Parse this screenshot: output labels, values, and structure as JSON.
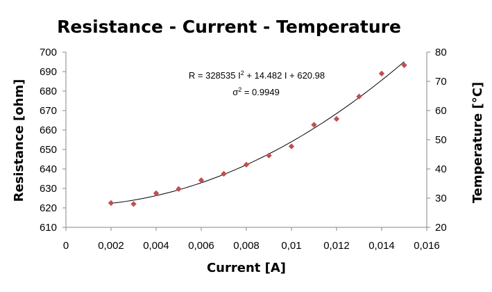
{
  "chart_data": {
    "type": "scatter",
    "title": "Resistance - Current - Temperature",
    "xlabel": "Current [A]",
    "ylabel": "Resistance [ohm]",
    "y2label": "Temperature [°C]",
    "xlim": [
      0,
      0.016
    ],
    "ylim": [
      610,
      700
    ],
    "y2lim": [
      20,
      80
    ],
    "x_ticks": [
      "0",
      "0,002",
      "0,004",
      "0,006",
      "0,008",
      "0,01",
      "0,012",
      "0,014",
      "0,016"
    ],
    "y_ticks": [
      "610",
      "620",
      "630",
      "640",
      "650",
      "660",
      "670",
      "680",
      "690",
      "700"
    ],
    "y2_ticks": [
      "20",
      "30",
      "40",
      "50",
      "60",
      "70",
      "80"
    ],
    "grid": false,
    "series": [
      {
        "marker": "diamond",
        "color": "#c0504d",
        "x": [
          0.002,
          0.003,
          0.004,
          0.005,
          0.006,
          0.007,
          0.008,
          0.009,
          0.01,
          0.011,
          0.012,
          0.013,
          0.014,
          0.015
        ],
        "y": [
          622.5,
          622.0,
          627.5,
          629.7,
          634.2,
          637.5,
          642.2,
          646.9,
          651.6,
          662.7,
          665.7,
          677.2,
          689.0,
          693.3
        ]
      }
    ],
    "trendline": {
      "type": "polynomial",
      "color": "#000000",
      "coefficients": {
        "a": 328535,
        "b": 14.482,
        "c": 620.98
      }
    },
    "annotation": {
      "equation_parts": [
        "R = 328535 I",
        "2",
        " + 14.482 I + 620.98"
      ],
      "r2_parts": [
        "σ",
        "2",
        " = 0.9949"
      ]
    }
  }
}
